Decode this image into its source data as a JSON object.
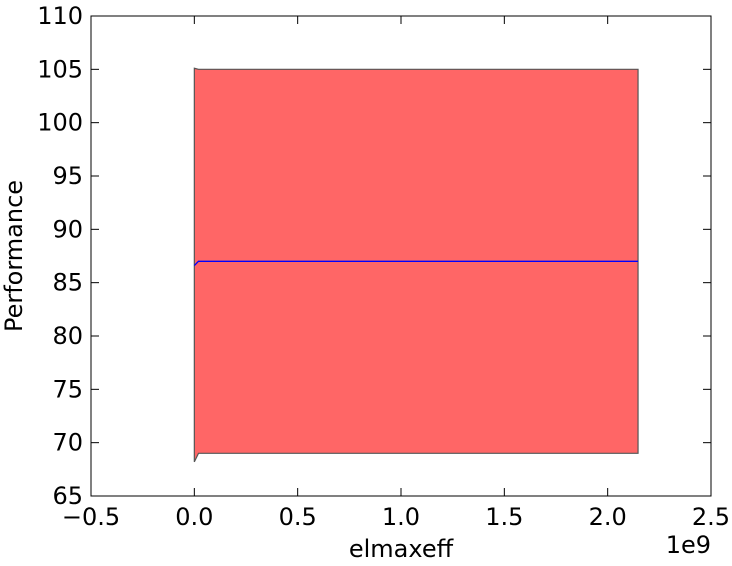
{
  "chart_data": {
    "type": "area",
    "xlabel": "elmaxeff",
    "ylabel": "Performance",
    "x_offset_label": "1e9",
    "xlim": [
      -0.5,
      2.5
    ],
    "ylim": [
      65,
      110
    ],
    "x_ticks": [
      -0.5,
      0.0,
      0.5,
      1.0,
      1.5,
      2.0,
      2.5
    ],
    "x_tick_labels": [
      "−0.5",
      "0.0",
      "0.5",
      "1.0",
      "1.5",
      "2.0",
      "2.5"
    ],
    "y_ticks": [
      65,
      70,
      75,
      80,
      85,
      90,
      95,
      100,
      105,
      110
    ],
    "y_tick_labels": [
      "65",
      "70",
      "75",
      "80",
      "85",
      "90",
      "95",
      "100",
      "105",
      "110"
    ],
    "grid": false,
    "band": {
      "x": [
        0.0,
        0.02,
        2.147
      ],
      "upper": [
        105.1,
        105.0,
        105.0
      ],
      "lower": [
        68.2,
        69.0,
        69.0
      ],
      "fill": "#ff6666",
      "edge": "#555555"
    },
    "series": [
      {
        "x": [
          0.0,
          0.02,
          2.147
        ],
        "values": [
          86.6,
          87.0,
          87.0
        ],
        "color": "#0000ff"
      }
    ]
  }
}
